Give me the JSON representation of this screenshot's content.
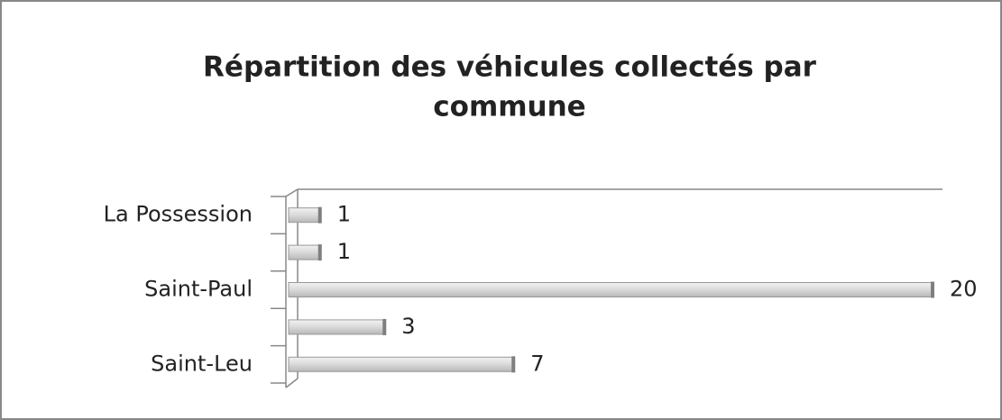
{
  "chart_data": {
    "type": "bar",
    "orientation": "horizontal",
    "title": "Répartition des véhicules collectés par commune",
    "categories": [
      "La Possession",
      null,
      "Saint-Paul",
      null,
      "Saint-Leu"
    ],
    "values": [
      1,
      1,
      20,
      3,
      7
    ],
    "color": "#d9d9d9",
    "xlim": [
      0,
      20
    ]
  }
}
